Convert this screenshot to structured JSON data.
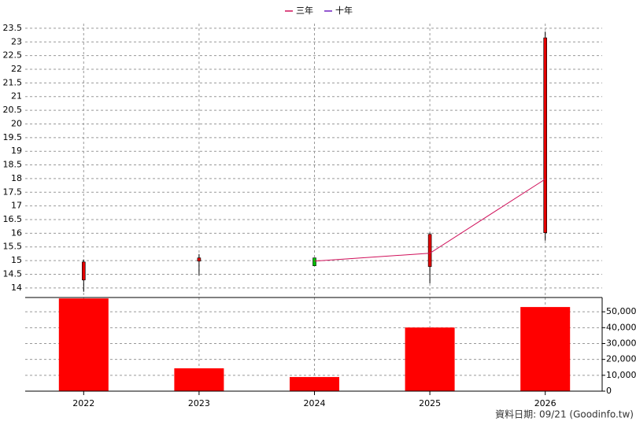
{
  "chart_data": [
    {
      "type": "candlestick",
      "categories": [
        "2022",
        "2023",
        "2024",
        "2025",
        "2026"
      ],
      "open": [
        14.29,
        14.98,
        15.1,
        14.78,
        16.02
      ],
      "high": [
        15.04,
        15.24,
        15.1,
        16.02,
        23.38
      ],
      "low": [
        13.86,
        14.46,
        14.81,
        14.17,
        15.73
      ],
      "close": [
        14.95,
        15.1,
        14.81,
        15.96,
        23.15
      ],
      "up_color": "#e00000",
      "down_color": "#00c000",
      "series": [
        {
          "name": "三年",
          "color": "#d0105a",
          "values": [
            null,
            null,
            14.98,
            15.27,
            17.98
          ]
        },
        {
          "name": "十年",
          "color": "#7020c0",
          "values": [
            null,
            null,
            null,
            null,
            null
          ]
        }
      ],
      "ylim": [
        13.65,
        23.67
      ],
      "yticks": [
        14,
        14.5,
        15,
        15.5,
        16,
        16.5,
        17,
        17.5,
        18,
        18.5,
        19,
        19.5,
        20,
        20.5,
        21,
        21.5,
        22,
        22.5,
        23,
        23.5
      ],
      "grid": true,
      "legend": "top"
    },
    {
      "type": "bar",
      "categories": [
        "2022",
        "2023",
        "2024",
        "2025",
        "2026"
      ],
      "values": [
        58400,
        14400,
        8900,
        40100,
        53000
      ],
      "color": "#ff0000",
      "ylim": [
        0,
        59000
      ],
      "yticks": [
        0,
        {
          "value": 10000,
          "label": "10,000"
        },
        {
          "value": 20000,
          "label": "20,000"
        },
        {
          "value": 30000,
          "label": "30,000"
        },
        {
          "value": 40000,
          "label": "40,000"
        },
        {
          "value": 50000,
          "label": "50,000"
        }
      ],
      "grid": true
    }
  ],
  "footer": "資料日期: 09/21  (Goodinfo.tw)"
}
